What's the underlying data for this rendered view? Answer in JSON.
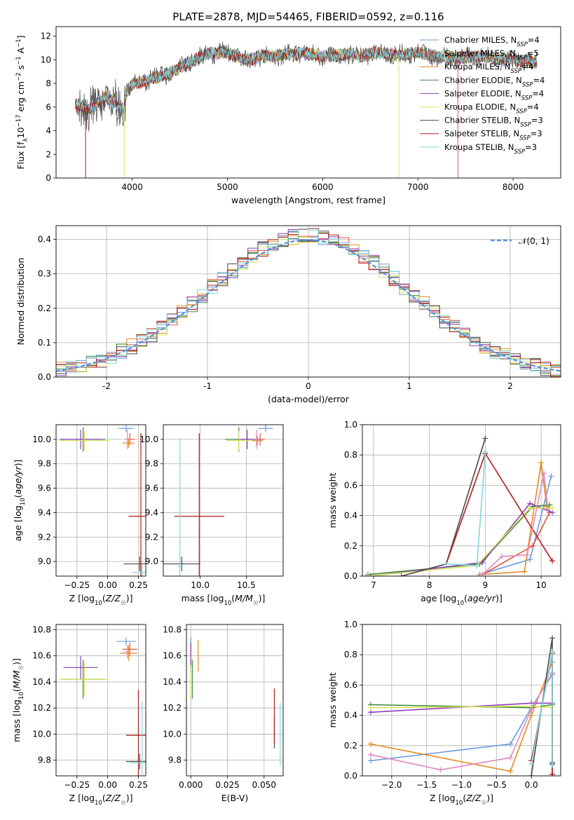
{
  "figure_title": "PLATE=2878, MJD=54465, FIBERID=0592, z=0.116",
  "colors": {
    "Chabrier MILES": "#6a9be0",
    "Salpeter MILES": "#e0533a",
    "Kroupa MILES": "#e6891f",
    "Chabrier ELODIE": "#3c8a3c",
    "Salpeter ELODIE": "#8e3fb8",
    "Kroupa ELODIE": "#d9e35a",
    "Chabrier STELIB": "#4a4a4a",
    "Salpeter STELIB": "#b01c1c",
    "Kroupa STELIB": "#7fd8e0",
    "normal_curve": "#5b8ee0",
    "pink_model": "#e08ac0"
  },
  "chart_data": [
    {
      "id": "spectrum",
      "type": "line",
      "title": "PLATE=2878, MJD=54465, FIBERID=0592, z=0.116",
      "xlabel": "wavelength [Angstrom, rest frame]",
      "ylabel": "Flux [f_λ10^-17 erg cm^-2 s^-1 A^-1]",
      "xlim": [
        3200,
        8500
      ],
      "ylim": [
        0,
        12.8
      ],
      "xticks": [
        4000,
        5000,
        6000,
        7000,
        8000
      ],
      "yticks": [
        0,
        2,
        4,
        6,
        8,
        10,
        12
      ],
      "legend_location": "right",
      "series": [
        {
          "name": "Chabrier MILES, N_SSP=4",
          "label_main": "Chabrier MILES, N",
          "label_sub": "SSP",
          "label_tail": "=4",
          "color_key": "Chabrier MILES"
        },
        {
          "name": "Salpeter MILES, N_SSP=5",
          "label_main": "Salpeter MILES, N",
          "label_sub": "SSP",
          "label_tail": "=5",
          "color_key": "Salpeter MILES"
        },
        {
          "name": "Kroupa MILES, N_SSP=4",
          "label_main": "Kroupa MILES, N",
          "label_sub": "SSP",
          "label_tail": "=4",
          "color_key": "Kroupa MILES"
        },
        {
          "name": "Chabrier ELODIE, N_SSP=4",
          "label_main": "Chabrier ELODIE, N",
          "label_sub": "SSP",
          "label_tail": "=4",
          "color_key": "Chabrier ELODIE"
        },
        {
          "name": "Salpeter ELODIE, N_SSP=4",
          "label_main": "Salpeter ELODIE, N",
          "label_sub": "SSP",
          "label_tail": "=4",
          "color_key": "Salpeter ELODIE"
        },
        {
          "name": "Kroupa ELODIE, N_SSP=4",
          "label_main": "Kroupa ELODIE, N",
          "label_sub": "SSP",
          "label_tail": "=4",
          "color_key": "Kroupa ELODIE"
        },
        {
          "name": "Chabrier STELIB, N_SSP=3",
          "label_main": "Chabrier STELIB, N",
          "label_sub": "SSP",
          "label_tail": "=3",
          "color_key": "Chabrier STELIB"
        },
        {
          "name": "Salpeter STELIB, N_SSP=3",
          "label_main": "Salpeter STELIB, N",
          "label_sub": "SSP",
          "label_tail": "=3",
          "color_key": "Salpeter STELIB"
        },
        {
          "name": "Kroupa STELIB, N_SSP=3",
          "label_main": "Kroupa STELIB, N",
          "label_sub": "SSP",
          "label_tail": "=3",
          "color_key": "Kroupa STELIB"
        }
      ],
      "continuum_points": [
        [
          3400,
          6.3
        ],
        [
          3500,
          5.8
        ],
        [
          3600,
          6.1
        ],
        [
          3700,
          6.8
        ],
        [
          3800,
          6.5
        ],
        [
          3900,
          5.5
        ],
        [
          3950,
          7.5
        ],
        [
          4000,
          7.9
        ],
        [
          4200,
          8.4
        ],
        [
          4400,
          8.9
        ],
        [
          4600,
          9.8
        ],
        [
          4800,
          10.5
        ],
        [
          5000,
          10.6
        ],
        [
          5200,
          10.0
        ],
        [
          5400,
          10.3
        ],
        [
          5600,
          10.4
        ],
        [
          5800,
          10.6
        ],
        [
          6000,
          10.2
        ],
        [
          6200,
          10.5
        ],
        [
          6400,
          10.3
        ],
        [
          6600,
          10.6
        ],
        [
          6800,
          10.4
        ],
        [
          7000,
          10.6
        ],
        [
          7200,
          10.3
        ],
        [
          7400,
          10.1
        ],
        [
          7600,
          10.3
        ],
        [
          7800,
          10.1
        ],
        [
          8000,
          10.0
        ],
        [
          8250,
          9.8
        ]
      ],
      "dropouts": [
        {
          "x": 3510,
          "color_key": "Salpeter STELIB"
        },
        {
          "x": 3915,
          "color_key": "Kroupa ELODIE"
        },
        {
          "x": 6800,
          "color_key": "Kroupa ELODIE"
        },
        {
          "x": 7420,
          "color_key": "Salpeter MILES"
        }
      ]
    },
    {
      "id": "residuals",
      "type": "bar",
      "xlabel": "(data-model)/error",
      "ylabel": "Normed distribution",
      "xlim": [
        -2.5,
        2.5
      ],
      "ylim": [
        0,
        0.44
      ],
      "xticks": [
        -2,
        -1,
        0,
        1,
        2
      ],
      "yticks": [
        0.0,
        0.1,
        0.2,
        0.3,
        0.4
      ],
      "grid": true,
      "bin_width": 0.1,
      "legend": {
        "location": "top-right",
        "label": "𝒩(0, 1)"
      },
      "curve": "normal(0, 1)"
    },
    {
      "id": "age_vs_Z",
      "type": "scatter",
      "xlabel": "Z [log10(Z/Z☉)]",
      "ylabel": "age  [log10(age/yr)]",
      "xlim": [
        -0.42,
        0.31
      ],
      "ylim": [
        8.88,
        10.12
      ],
      "xticks": [
        -0.25,
        0.0,
        0.25
      ],
      "xtick_labels": [
        "−0.25",
        "0.00",
        "0.25"
      ],
      "yticks": [
        9.0,
        9.2,
        9.4,
        9.6,
        9.8,
        10.0
      ],
      "grid": true,
      "points": [
        {
          "color_key": "Chabrier MILES",
          "x": 0.15,
          "xerr": 0.06,
          "y": 10.09,
          "yerr": 0.03
        },
        {
          "color_key": "Salpeter MILES",
          "x": 0.18,
          "xerr": 0.04,
          "y": 10.0,
          "yerr": 0.05
        },
        {
          "color_key": "Kroupa MILES",
          "x": 0.17,
          "xerr": 0.05,
          "y": 9.97,
          "yerr": 0.04
        },
        {
          "color_key": "Chabrier ELODIE",
          "x": -0.2,
          "xerr": 0.18,
          "y": 10.0,
          "yerr": 0.1
        },
        {
          "color_key": "Salpeter ELODIE",
          "x": -0.22,
          "xerr": 0.17,
          "y": 10.0,
          "yerr": 0.08
        },
        {
          "color_key": "Kroupa ELODIE",
          "x": -0.19,
          "xerr": 0.2,
          "y": 9.99,
          "yerr": 0.08
        },
        {
          "color_key": "Chabrier STELIB",
          "x": 0.26,
          "xerr": 0.13,
          "y": 8.98,
          "yerr": 0.06
        },
        {
          "color_key": "Salpeter STELIB",
          "x": 0.27,
          "xerr": 0.1,
          "y": 9.37,
          "yerr": 0.68
        },
        {
          "color_key": "Kroupa STELIB",
          "x": 0.28,
          "xerr": 0.08,
          "y": 8.91,
          "yerr": 0.06
        },
        {
          "color_key": "pink_model",
          "x": 0.16,
          "xerr": 0.02,
          "y": 10.0,
          "yerr": 0.08
        }
      ]
    },
    {
      "id": "age_vs_mass",
      "type": "scatter",
      "xlabel": "mass [log10(M/M☉)]",
      "xlim": [
        9.6,
        10.9
      ],
      "ylim": [
        8.88,
        10.12
      ],
      "xticks": [
        10.0,
        10.5
      ],
      "xtick_labels": [
        "10.0",
        "10.5"
      ],
      "yticks": [
        9.0,
        9.2,
        9.4,
        9.6,
        9.8,
        10.0
      ],
      "grid": true,
      "points": [
        {
          "color_key": "Chabrier MILES",
          "x": 10.71,
          "xerr": 0.08,
          "y": 10.09,
          "yerr": 0.03
        },
        {
          "color_key": "Salpeter MILES",
          "x": 10.65,
          "xerr": 0.05,
          "y": 10.0,
          "yerr": 0.05
        },
        {
          "color_key": "Kroupa MILES",
          "x": 10.62,
          "xerr": 0.06,
          "y": 9.99,
          "yerr": 0.04
        },
        {
          "color_key": "Chabrier ELODIE",
          "x": 10.42,
          "xerr": 0.15,
          "y": 10.0,
          "yerr": 0.1
        },
        {
          "color_key": "Salpeter ELODIE",
          "x": 10.51,
          "xerr": 0.12,
          "y": 10.0,
          "yerr": 0.08
        },
        {
          "color_key": "Kroupa ELODIE",
          "x": 10.42,
          "xerr": 0.13,
          "y": 9.99,
          "yerr": 0.08
        },
        {
          "color_key": "Chabrier STELIB",
          "x": 9.8,
          "xerr": 0.2,
          "y": 8.98,
          "yerr": 0.06
        },
        {
          "color_key": "Salpeter STELIB",
          "x": 9.99,
          "xerr": 0.27,
          "y": 9.37,
          "yerr": 0.68
        },
        {
          "color_key": "Kroupa STELIB",
          "x": 9.78,
          "xerr": 0.03,
          "y": 8.96,
          "yerr": 1.05
        },
        {
          "color_key": "pink_model",
          "x": 10.61,
          "xerr": 0.01,
          "y": 10.0,
          "yerr": 0.08
        }
      ]
    },
    {
      "id": "weight_vs_age",
      "type": "line",
      "xlabel": "age  [log10(age/yr)]",
      "ylabel": "mass weight",
      "xlim": [
        6.8,
        10.35
      ],
      "ylim": [
        0,
        1.0
      ],
      "xticks": [
        7,
        8,
        9,
        10
      ],
      "yticks": [
        0.0,
        0.2,
        0.4,
        0.6,
        0.8,
        1.0
      ],
      "grid": true,
      "series": [
        {
          "color_key": "Chabrier MILES",
          "x": [
            8.9,
            9.8,
            10.18
          ],
          "y": [
            0.01,
            0.11,
            0.66
          ]
        },
        {
          "color_key": "Salpeter MILES",
          "x": [
            8.95,
            9.85,
            10.15
          ],
          "y": [
            0.01,
            0.2,
            0.42
          ]
        },
        {
          "color_key": "Kroupa MILES",
          "x": [
            8.9,
            9.7,
            10.0,
            10.1
          ],
          "y": [
            0.01,
            0.03,
            0.75,
            0.46
          ]
        },
        {
          "color_key": "Chabrier ELODIE",
          "x": [
            6.9,
            8.9,
            9.85,
            10.15
          ],
          "y": [
            0.01,
            0.08,
            0.46,
            0.47
          ]
        },
        {
          "color_key": "Salpeter ELODIE",
          "x": [
            6.95,
            8.95,
            9.8,
            10.2
          ],
          "y": [
            0.0,
            0.09,
            0.48,
            0.42
          ]
        },
        {
          "color_key": "Kroupa ELODIE",
          "x": [
            6.9,
            8.85,
            9.8,
            10.2
          ],
          "y": [
            0.0,
            0.07,
            0.45,
            0.45
          ]
        },
        {
          "color_key": "Chabrier STELIB",
          "x": [
            7.5,
            8.3,
            9.0
          ],
          "y": [
            0.0,
            0.08,
            0.91
          ]
        },
        {
          "color_key": "Salpeter STELIB",
          "x": [
            8.3,
            9.0,
            10.2
          ],
          "y": [
            0.08,
            0.81,
            0.1
          ]
        },
        {
          "color_key": "Kroupa STELIB",
          "x": [
            8.3,
            8.85,
            9.0
          ],
          "y": [
            0.08,
            0.07,
            0.82
          ]
        },
        {
          "color_key": "pink_model",
          "x": [
            8.95,
            9.3,
            9.75,
            10.05,
            10.12
          ],
          "y": [
            0.01,
            0.13,
            0.14,
            0.68,
            0.44
          ]
        }
      ]
    },
    {
      "id": "mass_vs_Z",
      "type": "scatter",
      "xlabel": "Z [log10(Z/Z☉)]",
      "ylabel": "mass [log10(M/M☉)]",
      "xlim": [
        -0.42,
        0.31
      ],
      "ylim": [
        9.68,
        10.84
      ],
      "xticks": [
        -0.25,
        0.0,
        0.25
      ],
      "xtick_labels": [
        "−0.25",
        "0.00",
        "0.25"
      ],
      "yticks": [
        9.8,
        10.0,
        10.2,
        10.4,
        10.6,
        10.8
      ],
      "grid": true,
      "points": [
        {
          "color_key": "Chabrier MILES",
          "x": 0.15,
          "xerr": 0.08,
          "y": 10.71,
          "yerr": 0.03
        },
        {
          "color_key": "Salpeter MILES",
          "x": 0.18,
          "xerr": 0.06,
          "y": 10.65,
          "yerr": 0.05
        },
        {
          "color_key": "Kroupa MILES",
          "x": 0.17,
          "xerr": 0.07,
          "y": 10.62,
          "yerr": 0.06
        },
        {
          "color_key": "Chabrier ELODIE",
          "x": -0.2,
          "xerr": 0.18,
          "y": 10.42,
          "yerr": 0.15
        },
        {
          "color_key": "Salpeter ELODIE",
          "x": -0.22,
          "xerr": 0.14,
          "y": 10.51,
          "yerr": 0.09
        },
        {
          "color_key": "Kroupa ELODIE",
          "x": -0.19,
          "xerr": 0.2,
          "y": 10.42,
          "yerr": 0.13
        },
        {
          "color_key": "Chabrier STELIB",
          "x": 0.26,
          "xerr": 0.11,
          "y": 9.79,
          "yerr": 0.06
        },
        {
          "color_key": "Salpeter STELIB",
          "x": 0.25,
          "xerr": 0.1,
          "y": 9.99,
          "yerr": 0.35
        },
        {
          "color_key": "Kroupa STELIB",
          "x": 0.28,
          "xerr": 0.1,
          "y": 9.78,
          "yerr": 0.47
        },
        {
          "color_key": "pink_model",
          "x": 0.16,
          "xerr": 0.02,
          "y": 10.63,
          "yerr": 0.05
        }
      ]
    },
    {
      "id": "mass_vs_ebv",
      "type": "scatter",
      "xlabel": "E(B-V)",
      "xlim": [
        -0.003,
        0.063
      ],
      "ylim": [
        9.68,
        10.84
      ],
      "xticks": [
        0.0,
        0.025,
        0.05
      ],
      "xtick_labels": [
        "0.000",
        "0.025",
        "0.050"
      ],
      "yticks": [
        9.8,
        10.0,
        10.2,
        10.4,
        10.6,
        10.8
      ],
      "grid": true,
      "points": [
        {
          "color_key": "Chabrier MILES",
          "x": 0.0,
          "xerr": 0,
          "y": 10.71,
          "yerr": 0.03
        },
        {
          "color_key": "Salpeter MILES",
          "x": 0.0,
          "xerr": 0,
          "y": 10.65,
          "yerr": 0.05
        },
        {
          "color_key": "Kroupa MILES",
          "x": 0.005,
          "xerr": 0,
          "y": 10.6,
          "yerr": 0.12
        },
        {
          "color_key": "Chabrier ELODIE",
          "x": 0.001,
          "xerr": 0,
          "y": 10.42,
          "yerr": 0.15
        },
        {
          "color_key": "Salpeter ELODIE",
          "x": 0.0,
          "xerr": 0,
          "y": 10.6,
          "yerr": 0.1
        },
        {
          "color_key": "Kroupa ELODIE",
          "x": 0.0,
          "xerr": 0,
          "y": 10.4,
          "yerr": 0.13
        },
        {
          "color_key": "Chabrier STELIB",
          "x": 0.057,
          "xerr": 0,
          "y": 10.01,
          "yerr": 0.12
        },
        {
          "color_key": "Salpeter STELIB",
          "x": 0.057,
          "xerr": 0,
          "y": 10.14,
          "yerr": 0.21
        },
        {
          "color_key": "Kroupa STELIB",
          "x": 0.061,
          "xerr": 0,
          "y": 10.0,
          "yerr": 0.24
        }
      ]
    },
    {
      "id": "weight_vs_Z",
      "type": "line",
      "xlabel": "Z [log10(Z/Z☉)]",
      "ylabel": "mass weight",
      "xlim": [
        -2.42,
        0.42
      ],
      "ylim": [
        0,
        1.0
      ],
      "xticks": [
        -2.0,
        -1.5,
        -1.0,
        -0.5,
        0.0
      ],
      "xtick_labels": [
        "−2.0",
        "−1.5",
        "−1.0",
        "−0.5",
        "0.0"
      ],
      "yticks": [
        0.0,
        0.2,
        0.4,
        0.6,
        0.8,
        1.0
      ],
      "grid": true,
      "series": [
        {
          "color_key": "Chabrier MILES",
          "x": [
            -2.3,
            -0.3,
            0.0,
            0.3,
            0.3
          ],
          "y": [
            0.1,
            0.21,
            0.45,
            0.67,
            0.08
          ]
        },
        {
          "color_key": "Kroupa MILES",
          "x": [
            -2.3,
            -0.3,
            0.0,
            0.3,
            0.3
          ],
          "y": [
            0.21,
            0.03,
            0.4,
            0.75,
            0.01
          ]
        },
        {
          "color_key": "Chabrier ELODIE",
          "x": [
            -2.3,
            0.0,
            0.3,
            0.3
          ],
          "y": [
            0.47,
            0.45,
            0.47,
            0.08
          ]
        },
        {
          "color_key": "Salpeter ELODIE",
          "x": [
            -2.3,
            0.0,
            0.3,
            0.3
          ],
          "y": [
            0.42,
            0.48,
            0.48,
            0.09
          ]
        },
        {
          "color_key": "Kroupa ELODIE",
          "x": [
            -2.3,
            0.0,
            0.3,
            0.3
          ],
          "y": [
            0.45,
            0.46,
            0.45,
            0.07
          ]
        },
        {
          "color_key": "pink_model",
          "x": [
            -2.3,
            -1.3,
            -0.3,
            0.0,
            0.3,
            0.3
          ],
          "y": [
            0.14,
            0.04,
            0.12,
            0.44,
            0.68,
            0.01
          ]
        },
        {
          "color_key": "Chabrier STELIB",
          "x": [
            0.0,
            0.3,
            0.3
          ],
          "y": [
            0.0,
            0.91,
            0.08
          ]
        },
        {
          "color_key": "Salpeter STELIB",
          "x": [
            0.0,
            0.3,
            0.3
          ],
          "y": [
            0.1,
            0.81,
            0.01
          ]
        },
        {
          "color_key": "Kroupa STELIB",
          "x": [
            0.0,
            0.3,
            0.3
          ],
          "y": [
            0.08,
            0.82,
            0.07
          ]
        }
      ]
    }
  ]
}
